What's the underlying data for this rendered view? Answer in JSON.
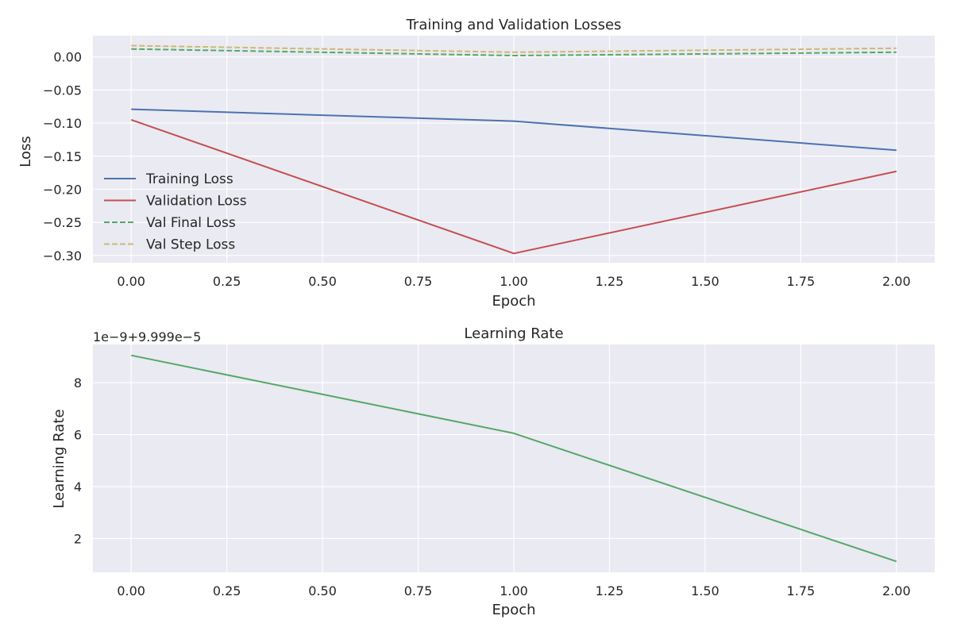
{
  "chart_data": [
    {
      "type": "line",
      "title": "Training and Validation Losses",
      "xlabel": "Epoch",
      "ylabel": "Loss",
      "xlim": [
        -0.1,
        2.1
      ],
      "ylim": [
        -0.311,
        0.032
      ],
      "xticks": [
        0.0,
        0.25,
        0.5,
        0.75,
        1.0,
        1.25,
        1.5,
        1.75,
        2.0
      ],
      "xtick_labels": [
        "0.00",
        "0.25",
        "0.50",
        "0.75",
        "1.00",
        "1.25",
        "1.50",
        "1.75",
        "2.00"
      ],
      "yticks": [
        0.0,
        -0.05,
        -0.1,
        -0.15,
        -0.2,
        -0.25,
        -0.3
      ],
      "ytick_labels": [
        "0.00",
        "−0.05",
        "−0.10",
        "−0.15",
        "−0.20",
        "−0.25",
        "−0.30"
      ],
      "grid": true,
      "legend_position": "center-left",
      "x": [
        0,
        1,
        2
      ],
      "series": [
        {
          "name": "Training Loss",
          "values": [
            -0.079,
            -0.097,
            -0.141
          ],
          "color": "#4c72b0",
          "dash": "solid"
        },
        {
          "name": "Validation Loss",
          "values": [
            -0.095,
            -0.297,
            -0.173
          ],
          "color": "#c44e52",
          "dash": "solid"
        },
        {
          "name": "Val Final Loss",
          "values": [
            0.012,
            0.002,
            0.007
          ],
          "color": "#55a868",
          "dash": "dashed"
        },
        {
          "name": "Val Step Loss",
          "values": [
            0.017,
            0.007,
            0.013
          ],
          "color": "#ccb974",
          "dash": "dashed"
        }
      ]
    },
    {
      "type": "line",
      "title": "Learning Rate",
      "xlabel": "Epoch",
      "ylabel": "Learning Rate",
      "offset_label": "1e−9+9.999e−5",
      "xlim": [
        -0.1,
        2.1
      ],
      "ylim": [
        0.7,
        9.47
      ],
      "xticks": [
        0.0,
        0.25,
        0.5,
        0.75,
        1.0,
        1.25,
        1.5,
        1.75,
        2.0
      ],
      "xtick_labels": [
        "0.00",
        "0.25",
        "0.50",
        "0.75",
        "1.00",
        "1.25",
        "1.50",
        "1.75",
        "2.00"
      ],
      "yticks": [
        2,
        4,
        6,
        8
      ],
      "ytick_labels": [
        "2",
        "4",
        "6",
        "8"
      ],
      "grid": true,
      "x": [
        0,
        1,
        2
      ],
      "series": [
        {
          "values": [
            9.05,
            6.05,
            1.12
          ],
          "color": "#55a868",
          "dash": "solid"
        }
      ]
    }
  ]
}
